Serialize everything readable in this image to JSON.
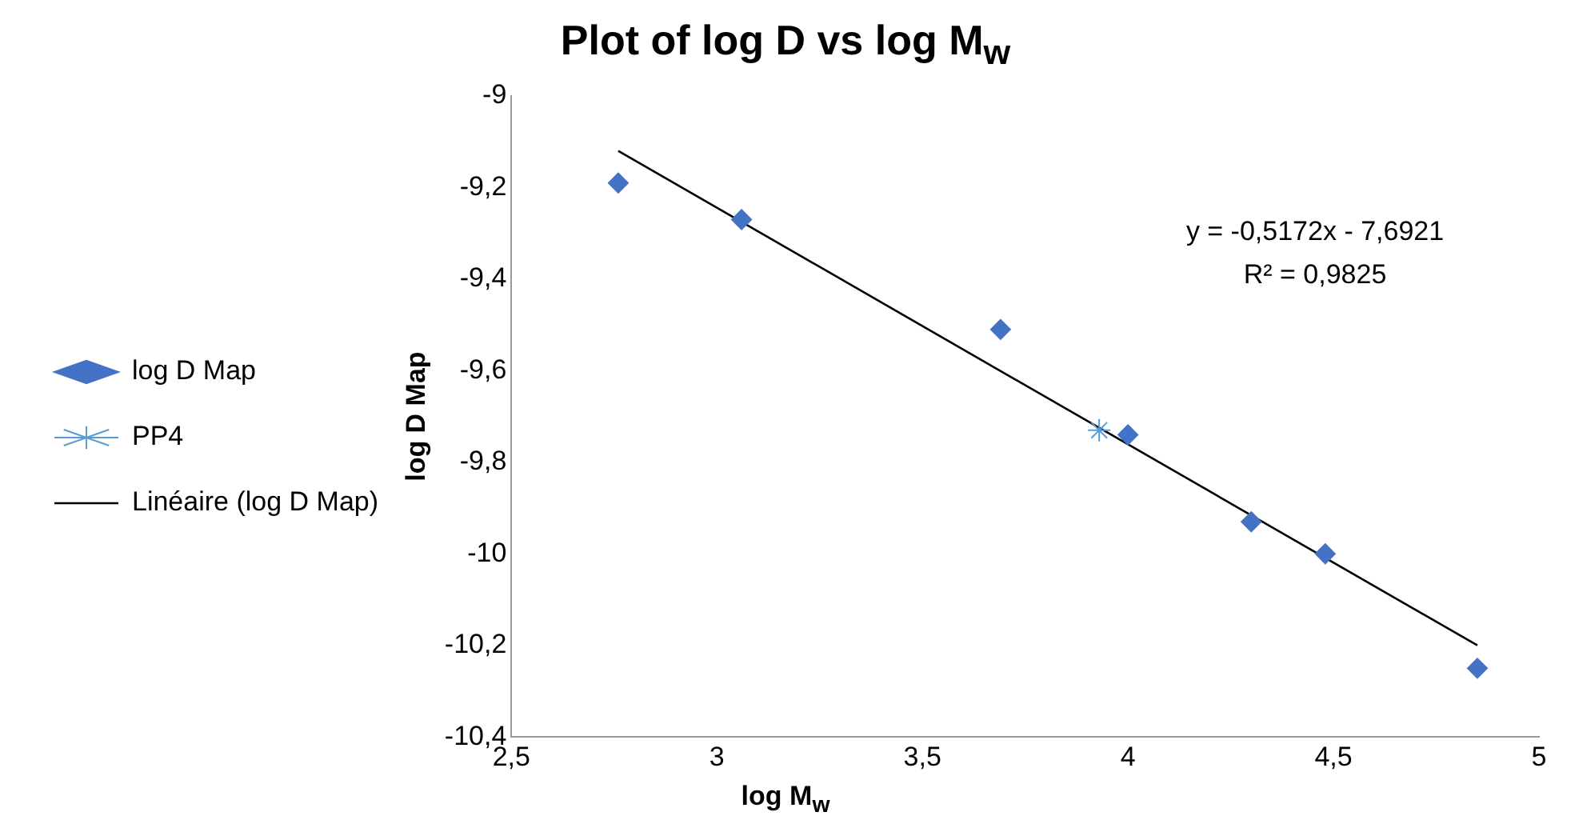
{
  "chart_data": {
    "type": "scatter",
    "title": "Plot of log D vs log M$_{w}$",
    "xlabel": "log M$_{w}$",
    "ylabel": "log D Map",
    "annotations": [
      "y = -0,5172x - 7,6921",
      "R² = 0,9825"
    ],
    "series": [
      {
        "name": "log D Map",
        "marker": "diamond",
        "color": "#4472c4",
        "x": [
          2.76,
          3.06,
          3.69,
          4.0,
          4.3,
          4.48,
          4.85
        ],
        "values": [
          -9.19,
          -9.27,
          -9.51,
          -9.74,
          -9.93,
          -10.0,
          -10.25
        ]
      },
      {
        "name": "PP4",
        "marker": "cross",
        "color": "#5b9bd5",
        "x": [
          3.93
        ],
        "values": [
          -9.73
        ]
      },
      {
        "name": "Linéaire (log D Map)",
        "type": "line",
        "marker": "none",
        "color": "#000000",
        "x": [
          2.76,
          4.85
        ],
        "values": [
          -9.12,
          -10.2
        ]
      }
    ],
    "xlim": [
      2.5,
      5
    ],
    "xticks": [
      {
        "value": 2.5,
        "label": "2,5"
      },
      3,
      {
        "value": 3.5,
        "label": "3,5"
      },
      4,
      {
        "value": 4.5,
        "label": "4,5"
      },
      5
    ],
    "ylim": [
      -10.4,
      -9
    ],
    "yticks": [
      {
        "value": -10.4,
        "label": "-10,4"
      },
      {
        "value": -10.2,
        "label": "-10,2"
      },
      -10,
      {
        "value": -9.8,
        "label": "-9,8"
      },
      {
        "value": -9.6,
        "label": "-9,6"
      },
      {
        "value": -9.4,
        "label": "-9,4"
      },
      {
        "value": -9.2,
        "label": "-9,2"
      },
      -9
    ],
    "grid": false,
    "legend": "left"
  }
}
